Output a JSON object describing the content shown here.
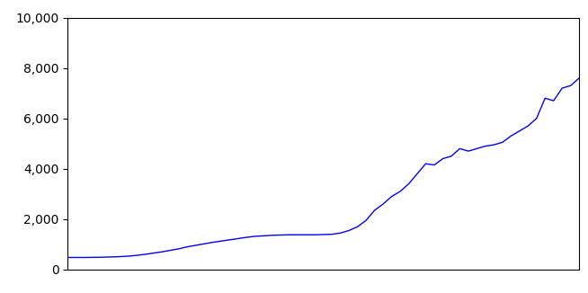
{
  "chart_data": {
    "type": "line",
    "color": "#0000ff",
    "grid": false,
    "tick_labels": "y",
    "values": [
      480,
      480,
      480,
      485,
      490,
      500,
      510,
      530,
      560,
      600,
      650,
      700,
      760,
      820,
      900,
      960,
      1020,
      1080,
      1130,
      1180,
      1230,
      1280,
      1320,
      1340,
      1360,
      1370,
      1380,
      1380,
      1380,
      1380,
      1390,
      1400,
      1450,
      1550,
      1700,
      1950,
      2350,
      2600,
      2900,
      3100,
      3400,
      3800,
      4200,
      4150,
      4400,
      4500,
      4800,
      4700,
      4800,
      4900,
      4950,
      5050,
      5300,
      5500,
      5700,
      6000,
      6800,
      6700,
      7200,
      7300,
      7600
    ],
    "ylim": [
      0,
      10000
    ],
    "yticks": [
      0,
      {
        "value": 2000,
        "label": "2,000"
      },
      {
        "value": 4000,
        "label": "4,000"
      },
      {
        "value": 6000,
        "label": "6,000"
      },
      {
        "value": 8000,
        "label": "8,000"
      },
      {
        "value": 10000,
        "label": "10,000"
      }
    ]
  }
}
